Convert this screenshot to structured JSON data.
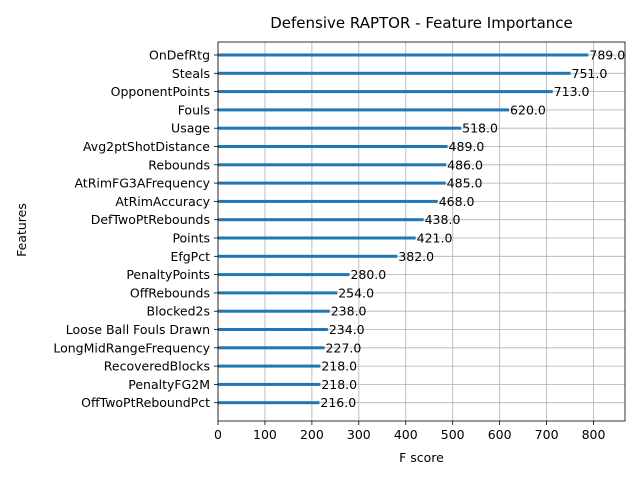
{
  "chart_data": {
    "type": "bar",
    "orientation": "horizontal",
    "title": "Defensive RAPTOR - Feature Importance",
    "xlabel": "F score",
    "ylabel": "Features",
    "xlim": [
      0,
      867
    ],
    "xticks": [
      0,
      100,
      200,
      300,
      400,
      500,
      600,
      700,
      800
    ],
    "grid": true,
    "bar_color": "#1f77b4",
    "categories": [
      "OnDefRtg",
      "Steals",
      "OpponentPoints",
      "Fouls",
      "Usage",
      "Avg2ptShotDistance",
      "Rebounds",
      "AtRimFG3AFrequency",
      "AtRimAccuracy",
      "DefTwoPtRebounds",
      "Points",
      "EfgPct",
      "PenaltyPoints",
      "OffRebounds",
      "Blocked2s",
      "Loose Ball Fouls Drawn",
      "LongMidRangeFrequency",
      "RecoveredBlocks",
      "PenaltyFG2M",
      "OffTwoPtReboundPct"
    ],
    "values": [
      789,
      751,
      713,
      620,
      518,
      489,
      486,
      485,
      468,
      438,
      421,
      382,
      280,
      254,
      238,
      234,
      227,
      218,
      218,
      216
    ],
    "value_labels": [
      "789.0",
      "751.0",
      "713.0",
      "620.0",
      "518.0",
      "489.0",
      "486.0",
      "485.0",
      "468.0",
      "438.0",
      "421.0",
      "382.0",
      "280.0",
      "254.0",
      "238.0",
      "234.0",
      "227.0",
      "218.0",
      "218.0",
      "216.0"
    ]
  }
}
